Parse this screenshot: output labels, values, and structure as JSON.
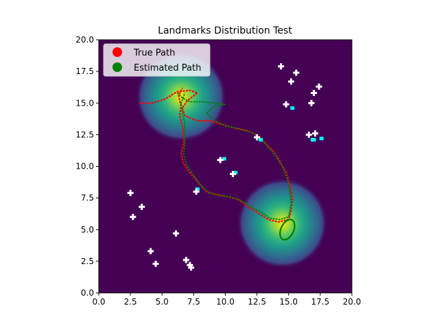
{
  "chart_data": {
    "type": "scatter",
    "title": "Landmarks Distribution Test",
    "xlabel": "",
    "ylabel": "",
    "xlim": [
      0,
      20
    ],
    "ylim": [
      0,
      20
    ],
    "x_ticks": [
      "0.0",
      "2.5",
      "5.0",
      "7.5",
      "10.0",
      "12.5",
      "15.0",
      "17.5",
      "20.0"
    ],
    "y_ticks": [
      "0.0",
      "2.5",
      "5.0",
      "7.5",
      "10.0",
      "12.5",
      "15.0",
      "17.5",
      "20.0"
    ],
    "background_color": "#440154",
    "grid": false,
    "legend_position": "top-left",
    "legend": [
      {
        "name": "True Path",
        "color": "#ff0000"
      },
      {
        "name": "Estimated Path",
        "color": "#008000"
      }
    ],
    "density_peaks": [
      {
        "x": 6.5,
        "y": 15.5,
        "sigma": 1.5
      },
      {
        "x": 14.5,
        "y": 5.5,
        "sigma": 1.5
      }
    ],
    "true_path": [
      [
        3.2,
        15.0
      ],
      [
        4.2,
        15.0
      ],
      [
        5.2,
        15.3
      ],
      [
        6.2,
        15.9
      ],
      [
        7.2,
        16.0
      ],
      [
        7.8,
        15.8
      ],
      [
        7.0,
        15.2
      ],
      [
        6.6,
        14.6
      ],
      [
        6.8,
        14.0
      ],
      [
        7.8,
        13.6
      ],
      [
        8.8,
        13.6
      ],
      [
        9.8,
        13.3
      ],
      [
        10.8,
        13.0
      ],
      [
        11.8,
        12.8
      ],
      [
        12.6,
        12.4
      ],
      [
        13.2,
        11.8
      ],
      [
        13.8,
        11.2
      ],
      [
        14.3,
        10.4
      ],
      [
        14.8,
        9.5
      ],
      [
        15.1,
        8.5
      ],
      [
        15.3,
        7.5
      ],
      [
        15.2,
        6.5
      ],
      [
        15.0,
        5.8
      ],
      [
        14.2,
        5.6
      ],
      [
        13.4,
        5.8
      ],
      [
        12.6,
        6.3
      ],
      [
        11.8,
        6.8
      ],
      [
        11.0,
        7.4
      ],
      [
        10.2,
        7.6
      ],
      [
        9.2,
        7.8
      ],
      [
        8.5,
        8.0
      ],
      [
        7.8,
        8.8
      ],
      [
        7.2,
        9.5
      ],
      [
        6.7,
        10.2
      ],
      [
        6.5,
        11.0
      ],
      [
        6.7,
        11.8
      ],
      [
        6.7,
        12.5
      ],
      [
        6.6,
        13.2
      ],
      [
        6.4,
        14.0
      ],
      [
        6.5,
        14.8
      ],
      [
        6.3,
        15.6
      ],
      [
        6.6,
        16.2
      ]
    ],
    "estimated_path": [
      [
        6.2,
        15.8
      ],
      [
        6.6,
        15.4
      ],
      [
        7.2,
        15.1
      ],
      [
        8.2,
        15.1
      ],
      [
        9.2,
        15.0
      ],
      [
        10.0,
        14.9
      ],
      [
        9.2,
        14.8
      ],
      [
        8.5,
        14.2
      ],
      [
        9.2,
        13.6
      ],
      [
        10.0,
        13.2
      ],
      [
        11.0,
        13.0
      ],
      [
        12.0,
        12.7
      ],
      [
        12.8,
        12.2
      ],
      [
        13.4,
        11.5
      ],
      [
        14.0,
        10.8
      ],
      [
        14.5,
        10.0
      ],
      [
        14.9,
        9.0
      ],
      [
        15.1,
        8.0
      ],
      [
        15.2,
        7.0
      ],
      [
        15.0,
        6.0
      ],
      [
        14.3,
        5.8
      ],
      [
        13.5,
        5.9
      ],
      [
        12.8,
        6.4
      ],
      [
        12.0,
        6.8
      ],
      [
        11.2,
        7.3
      ],
      [
        10.4,
        7.6
      ],
      [
        9.5,
        7.7
      ],
      [
        8.7,
        7.9
      ],
      [
        8.0,
        8.6
      ],
      [
        7.4,
        9.4
      ],
      [
        6.9,
        10.2
      ],
      [
        6.7,
        11.0
      ],
      [
        6.8,
        11.8
      ],
      [
        6.8,
        12.6
      ],
      [
        6.8,
        13.4
      ],
      [
        6.6,
        14.2
      ],
      [
        6.5,
        15.0
      ],
      [
        6.8,
        15.8
      ]
    ],
    "estimated_loop": {
      "cx": 14.9,
      "cy": 5.0,
      "rx": 0.5,
      "ry": 0.85,
      "rotation": 25
    },
    "true_landmarks": [
      [
        2.5,
        7.9
      ],
      [
        2.7,
        6.0
      ],
      [
        3.4,
        6.8
      ],
      [
        4.1,
        3.3
      ],
      [
        4.5,
        2.3
      ],
      [
        6.1,
        4.7
      ],
      [
        6.9,
        2.6
      ],
      [
        7.2,
        2.2
      ],
      [
        7.3,
        2.0
      ],
      [
        7.7,
        8.0
      ],
      [
        9.6,
        10.5
      ],
      [
        10.6,
        9.4
      ],
      [
        12.5,
        12.3
      ],
      [
        14.4,
        17.9
      ],
      [
        14.8,
        14.9
      ],
      [
        15.2,
        16.7
      ],
      [
        15.6,
        17.4
      ],
      [
        16.6,
        12.5
      ],
      [
        16.8,
        15.0
      ],
      [
        17.0,
        15.8
      ],
      [
        17.1,
        12.6
      ],
      [
        17.4,
        16.3
      ]
    ],
    "estimated_landmarks": [
      [
        7.8,
        8.2
      ],
      [
        9.9,
        10.6
      ],
      [
        10.8,
        9.5
      ],
      [
        12.8,
        12.1
      ],
      [
        15.3,
        14.6
      ],
      [
        17.0,
        12.1
      ],
      [
        17.6,
        12.2
      ],
      [
        16.9,
        12.1
      ]
    ],
    "landmark_colors": {
      "true": "#ffffff",
      "estimated": "#00ffff"
    }
  }
}
